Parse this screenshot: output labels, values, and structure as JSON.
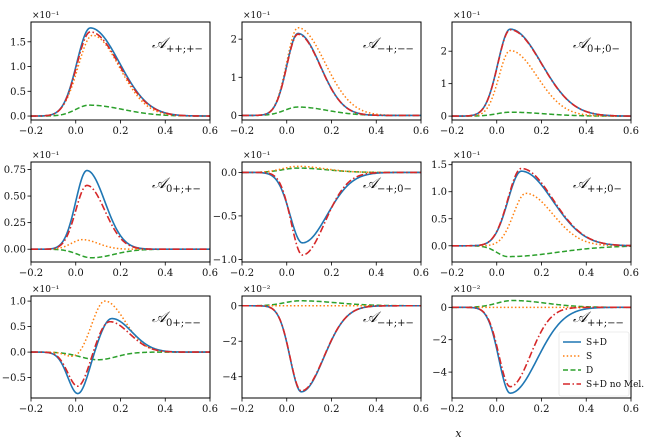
{
  "figure": {
    "xlabel": "x",
    "xlim": [
      -0.2,
      0.6
    ],
    "x_ticks": [
      -0.2,
      0.0,
      0.2,
      0.4,
      0.6
    ],
    "x_tick_labels": [
      "−0.2",
      "0.0",
      "0.2",
      "0.4",
      "0.6"
    ]
  },
  "legend": {
    "panel_index": 8,
    "placement": "lower-right",
    "entries": [
      {
        "label": "S+D",
        "color": "#1f77b4",
        "dash": "solid"
      },
      {
        "label": "S",
        "color": "#ff7f0e",
        "dash": "dotted"
      },
      {
        "label": "D",
        "color": "#2ca02c",
        "dash": "dashed"
      },
      {
        "label": "S+D no Mel.",
        "color": "#d62728",
        "dash": "dashdot"
      }
    ]
  },
  "chart_data": [
    {
      "type": "line",
      "title_main": "𝒜",
      "title_sub": "++;+−",
      "exponent": "×10⁻¹",
      "ylim": [
        -0.08,
        1.9
      ],
      "yticks": [
        0.0,
        0.5,
        1.0,
        1.5
      ],
      "ytick_labels": [
        "0.0",
        "0.5",
        "1.0",
        "1.5"
      ],
      "series": [
        {
          "key": "SD",
          "shape": "skew",
          "amp": 1.78,
          "center": 0.065,
          "wl": 0.06,
          "wr": 0.13
        },
        {
          "key": "S",
          "shape": "skew",
          "amp": 1.63,
          "center": 0.075,
          "wl": 0.065,
          "wr": 0.12
        },
        {
          "key": "D",
          "shape": "skew",
          "amp": 0.22,
          "center": 0.06,
          "wl": 0.06,
          "wr": 0.15
        },
        {
          "key": "SDnoMel",
          "shape": "skew",
          "amp": 1.7,
          "center": 0.065,
          "wl": 0.06,
          "wr": 0.13
        }
      ]
    },
    {
      "type": "line",
      "title_main": "𝒜",
      "title_sub": "−+;−−",
      "exponent": "×10⁻¹",
      "ylim": [
        -0.12,
        2.45
      ],
      "yticks": [
        0,
        1,
        2
      ],
      "ytick_labels": [
        "0",
        "1",
        "2"
      ],
      "series": [
        {
          "key": "SD",
          "shape": "skew",
          "amp": 2.15,
          "center": 0.05,
          "wl": 0.05,
          "wr": 0.1
        },
        {
          "key": "S",
          "shape": "skew",
          "amp": 2.3,
          "center": 0.05,
          "wl": 0.05,
          "wr": 0.12
        },
        {
          "key": "D",
          "shape": "skew",
          "amp": 0.22,
          "center": 0.05,
          "wl": 0.06,
          "wr": 0.13
        },
        {
          "key": "SDnoMel",
          "shape": "skew",
          "amp": 2.13,
          "center": 0.05,
          "wl": 0.05,
          "wr": 0.1
        }
      ]
    },
    {
      "type": "line",
      "title_main": "𝒜",
      "title_sub": "0+;0−",
      "exponent": "×10⁻¹",
      "ylim": [
        -0.12,
        2.9
      ],
      "yticks": [
        0,
        1,
        2
      ],
      "ytick_labels": [
        "0",
        "1",
        "2"
      ],
      "series": [
        {
          "key": "SD",
          "shape": "skew",
          "amp": 2.68,
          "center": 0.06,
          "wl": 0.055,
          "wr": 0.14
        },
        {
          "key": "S",
          "shape": "skew",
          "amp": 2.02,
          "center": 0.06,
          "wl": 0.05,
          "wr": 0.12
        },
        {
          "key": "D",
          "shape": "skew",
          "amp": 0.12,
          "center": 0.06,
          "wl": 0.06,
          "wr": 0.15
        },
        {
          "key": "SDnoMel",
          "shape": "skew",
          "amp": 2.66,
          "center": 0.06,
          "wl": 0.055,
          "wr": 0.14
        }
      ]
    },
    {
      "type": "line",
      "title_main": "𝒜",
      "title_sub": "0+;+−",
      "exponent": "×10⁻¹",
      "ylim": [
        -0.12,
        0.82
      ],
      "yticks": [
        0.0,
        0.25,
        0.5,
        0.75
      ],
      "ytick_labels": [
        "0.00",
        "0.25",
        "0.50",
        "0.75"
      ],
      "series": [
        {
          "key": "SD",
          "shape": "skew",
          "amp": 0.74,
          "center": 0.05,
          "wl": 0.05,
          "wr": 0.08
        },
        {
          "key": "S",
          "shape": "skew",
          "amp": 0.09,
          "center": 0.03,
          "wl": 0.05,
          "wr": 0.07
        },
        {
          "key": "D",
          "shape": "skew",
          "amp": -0.08,
          "center": 0.07,
          "wl": 0.06,
          "wr": 0.1
        },
        {
          "key": "SDnoMel",
          "shape": "skew",
          "amp": 0.6,
          "center": 0.05,
          "wl": 0.05,
          "wr": 0.08
        }
      ]
    },
    {
      "type": "line",
      "title_main": "𝒜",
      "title_sub": "−+;0−",
      "exponent": "×10⁻¹",
      "ylim": [
        -1.03,
        0.12
      ],
      "yticks": [
        0.0,
        -0.5,
        -1.0
      ],
      "ytick_labels": [
        "0.0",
        "−0.5",
        "−1.0"
      ],
      "series": [
        {
          "key": "SD",
          "shape": "skew",
          "amp": -0.81,
          "center": 0.07,
          "wl": 0.055,
          "wr": 0.11
        },
        {
          "key": "S",
          "shape": "skew",
          "amp": 0.07,
          "center": 0.05,
          "wl": 0.07,
          "wr": 0.12
        },
        {
          "key": "D",
          "shape": "skew",
          "amp": 0.05,
          "center": 0.05,
          "wl": 0.07,
          "wr": 0.13
        },
        {
          "key": "SDnoMel",
          "shape": "skew",
          "amp": -0.95,
          "center": 0.07,
          "wl": 0.05,
          "wr": 0.1
        }
      ]
    },
    {
      "type": "line",
      "title_main": "𝒜",
      "title_sub": "++;0−",
      "exponent": "×10⁻¹",
      "ylim": [
        -0.3,
        1.55
      ],
      "yticks": [
        0.0,
        0.5,
        1.0,
        1.5
      ],
      "ytick_labels": [
        "0.0",
        "0.5",
        "1.0",
        "1.5"
      ],
      "series": [
        {
          "key": "SD",
          "shape": "skew",
          "amp": 1.38,
          "center": 0.11,
          "wl": 0.06,
          "wr": 0.14
        },
        {
          "key": "S",
          "shape": "skew",
          "amp": 0.97,
          "center": 0.13,
          "wl": 0.055,
          "wr": 0.12
        },
        {
          "key": "D",
          "shape": "skew",
          "amp": -0.2,
          "center": 0.05,
          "wl": 0.05,
          "wr": 0.22
        },
        {
          "key": "SDnoMel",
          "shape": "skew",
          "amp": 1.43,
          "center": 0.11,
          "wl": 0.06,
          "wr": 0.14
        }
      ]
    },
    {
      "type": "line",
      "title_main": "𝒜",
      "title_sub": "0+;−−",
      "exponent": "×10⁻¹",
      "ylim": [
        -0.9,
        1.1
      ],
      "yticks": [
        -0.5,
        0.0,
        0.5,
        1.0
      ],
      "ytick_labels": [
        "−0.5",
        "0.0",
        "0.5",
        "1.0"
      ],
      "series": [
        {
          "key": "SD",
          "shape": "bip",
          "negAmp": -0.82,
          "negCenter": 0.01,
          "negW": 0.045,
          "posAmp": 0.66,
          "posCenter": 0.16,
          "posWL": 0.05,
          "posWR": 0.09
        },
        {
          "key": "S",
          "shape": "bip",
          "negAmp": -0.12,
          "negCenter": 0.0,
          "negW": 0.04,
          "posAmp": 1.0,
          "posCenter": 0.13,
          "posWL": 0.055,
          "posWR": 0.09
        },
        {
          "key": "D",
          "shape": "bip",
          "negAmp": -0.15,
          "negCenter": 0.1,
          "negW": 0.08,
          "posAmp": 0.0,
          "posCenter": 0.2,
          "posWL": 0.05,
          "posWR": 0.05
        },
        {
          "key": "SDnoMel",
          "shape": "bip",
          "negAmp": -0.68,
          "negCenter": 0.01,
          "negW": 0.045,
          "posAmp": 0.6,
          "posCenter": 0.15,
          "posWL": 0.05,
          "posWR": 0.09
        }
      ]
    },
    {
      "type": "line",
      "title_main": "𝒜",
      "title_sub": "−+;+−",
      "exponent": "×10⁻²",
      "ylim": [
        -5.2,
        0.55
      ],
      "yticks": [
        0,
        -2,
        -4
      ],
      "ytick_labels": [
        "0",
        "−2",
        "−4"
      ],
      "series": [
        {
          "key": "SD",
          "shape": "skew",
          "amp": -4.85,
          "center": 0.065,
          "wl": 0.05,
          "wr": 0.1
        },
        {
          "key": "S",
          "shape": "skew",
          "amp": 0.0,
          "center": 0.06,
          "wl": 0.05,
          "wr": 0.1
        },
        {
          "key": "D",
          "shape": "skew",
          "amp": 0.28,
          "center": 0.06,
          "wl": 0.07,
          "wr": 0.16
        },
        {
          "key": "SDnoMel",
          "shape": "skew",
          "amp": -4.8,
          "center": 0.065,
          "wl": 0.05,
          "wr": 0.1
        }
      ]
    },
    {
      "type": "line",
      "title_main": "𝒜",
      "title_sub": "++;−−",
      "exponent": "×10⁻²",
      "ylim": [
        -5.6,
        0.7
      ],
      "yticks": [
        0,
        -2,
        -4
      ],
      "ytick_labels": [
        "0",
        "−2",
        "−4"
      ],
      "series": [
        {
          "key": "SD",
          "shape": "skew",
          "amp": -5.3,
          "center": 0.06,
          "wl": 0.05,
          "wr": 0.12
        },
        {
          "key": "S",
          "shape": "skew",
          "amp": 0.0,
          "center": 0.06,
          "wl": 0.05,
          "wr": 0.1
        },
        {
          "key": "D",
          "shape": "skew",
          "amp": 0.42,
          "center": 0.07,
          "wl": 0.07,
          "wr": 0.15
        },
        {
          "key": "SDnoMel",
          "shape": "skew",
          "amp": -4.9,
          "center": 0.06,
          "wl": 0.05,
          "wr": 0.09
        }
      ]
    }
  ]
}
